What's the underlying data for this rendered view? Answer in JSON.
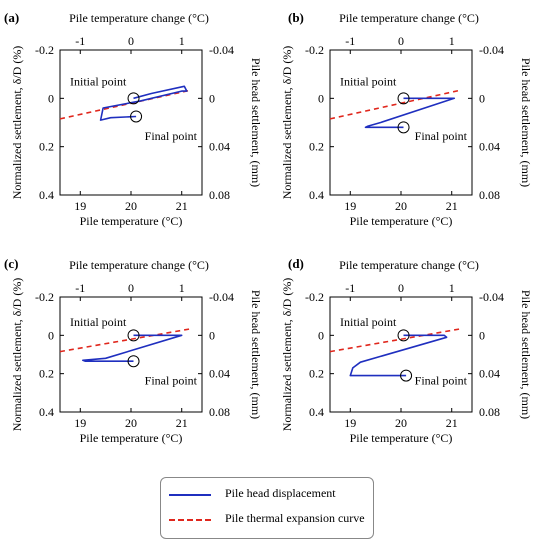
{
  "colors": {
    "displacement": "#1f2fbf",
    "thermal": "#e0271d",
    "axis": "#000000"
  },
  "legend": {
    "displacement_label": "Pile head displacement",
    "thermal_label": "Pile thermal expansion curve"
  },
  "chart_data": [
    {
      "type": "line",
      "panel_label": "(a)",
      "xlabel": "Pile temperature (°C)",
      "x2label": "Pile temperature change (°C)",
      "ylabel": "Normalized settlement, δ/D (%)",
      "y2label": "Pile head settlement, (mm)",
      "xlim": [
        18.6,
        21.4
      ],
      "ylim": [
        0.4,
        -0.2
      ],
      "x_ticks": [
        19,
        20,
        21
      ],
      "x2_ticks": [
        -1,
        0,
        1
      ],
      "y_ticks": [
        -0.2,
        0,
        0.2,
        0.4
      ],
      "y_tick_labels": [
        "-0.2",
        "0",
        "0.2",
        "0.4"
      ],
      "y2_ticks": [
        -0.04,
        0,
        0.04,
        0.08
      ],
      "y2_tick_labels": [
        "-0.04",
        "0",
        "0.04",
        "0.08"
      ],
      "annotations": {
        "initial": "Initial point",
        "final": "Final point"
      },
      "initial_point": {
        "x": 20.05,
        "y": 0.0
      },
      "final_point": {
        "x": 20.1,
        "y": 0.075
      },
      "series": [
        {
          "name": "Pile head displacement",
          "x": [
            20.05,
            20.4,
            21.05,
            21.1,
            21.0,
            20.2,
            19.45,
            19.4,
            19.6,
            20.1
          ],
          "y": [
            0.0,
            -0.02,
            -0.05,
            -0.03,
            -0.03,
            0.01,
            0.04,
            0.09,
            0.08,
            0.075
          ]
        },
        {
          "name": "Pile thermal expansion curve",
          "x": [
            18.6,
            21.2
          ],
          "y": [
            0.085,
            -0.035
          ]
        }
      ]
    },
    {
      "type": "line",
      "panel_label": "(b)",
      "xlabel": "Pile temperature (°C)",
      "x2label": "Pile temperature change (°C)",
      "ylabel": "Normalized settlement, δ/D (%)",
      "y2label": "Pile head settlement, (mm)",
      "xlim": [
        18.6,
        21.4
      ],
      "ylim": [
        0.4,
        -0.2
      ],
      "x_ticks": [
        19,
        20,
        21
      ],
      "x2_ticks": [
        -1,
        0,
        1
      ],
      "y_ticks": [
        -0.2,
        0,
        0.2,
        0.4
      ],
      "y_tick_labels": [
        "-0.2",
        "0",
        "0.2",
        "0.4"
      ],
      "y2_ticks": [
        -0.04,
        0,
        0.04,
        0.08
      ],
      "y2_tick_labels": [
        "-0.04",
        "0",
        "0.04",
        "0.08"
      ],
      "annotations": {
        "initial": "Initial point",
        "final": "Final point"
      },
      "initial_point": {
        "x": 20.05,
        "y": 0.0
      },
      "final_point": {
        "x": 20.05,
        "y": 0.12
      },
      "series": [
        {
          "name": "Pile head displacement",
          "x": [
            20.05,
            21.05,
            19.6,
            19.35,
            19.3,
            20.05
          ],
          "y": [
            0.0,
            0.0,
            0.1,
            0.115,
            0.12,
            0.12
          ]
        },
        {
          "name": "Pile thermal expansion curve",
          "x": [
            18.6,
            21.2
          ],
          "y": [
            0.085,
            -0.035
          ]
        }
      ]
    },
    {
      "type": "line",
      "panel_label": "(c)",
      "xlabel": "Pile temperature (°C)",
      "x2label": "Pile temperature change (°C)",
      "ylabel": "Normalized settlement, δ/D (%)",
      "y2label": "Pile head settlement, (mm)",
      "xlim": [
        18.6,
        21.4
      ],
      "ylim": [
        0.4,
        -0.2
      ],
      "x_ticks": [
        19,
        20,
        21
      ],
      "x2_ticks": [
        -1,
        0,
        1
      ],
      "y_ticks": [
        -0.2,
        0,
        0.2,
        0.4
      ],
      "y_tick_labels": [
        "-0.2",
        "0",
        "0.2",
        "0.4"
      ],
      "y2_ticks": [
        -0.04,
        0,
        0.04,
        0.08
      ],
      "y2_tick_labels": [
        "-0.04",
        "0",
        "0.04",
        "0.08"
      ],
      "annotations": {
        "initial": "Initial point",
        "final": "Final point"
      },
      "initial_point": {
        "x": 20.05,
        "y": 0.0
      },
      "final_point": {
        "x": 20.05,
        "y": 0.135
      },
      "series": [
        {
          "name": "Pile head displacement",
          "x": [
            20.05,
            21.0,
            19.5,
            19.05,
            19.1,
            20.05
          ],
          "y": [
            0.0,
            0.0,
            0.12,
            0.13,
            0.135,
            0.135
          ]
        },
        {
          "name": "Pile thermal expansion curve",
          "x": [
            18.6,
            21.2
          ],
          "y": [
            0.085,
            -0.035
          ]
        }
      ]
    },
    {
      "type": "line",
      "panel_label": "(d)",
      "xlabel": "Pile temperature (°C)",
      "x2label": "Pile temperature change (°C)",
      "ylabel": "Normalized settlement, δ/D (%)",
      "y2label": "Pile head settlement, (mm)",
      "xlim": [
        18.6,
        21.4
      ],
      "ylim": [
        0.4,
        -0.2
      ],
      "x_ticks": [
        19,
        20,
        21
      ],
      "x2_ticks": [
        -1,
        0,
        1
      ],
      "y_ticks": [
        -0.2,
        0,
        0.2,
        0.4
      ],
      "y_tick_labels": [
        "-0.2",
        "0",
        "0.2",
        "0.4"
      ],
      "y2_ticks": [
        -0.04,
        0,
        0.04,
        0.08
      ],
      "y2_tick_labels": [
        "-0.04",
        "0",
        "0.04",
        "0.08"
      ],
      "annotations": {
        "initial": "Initial point",
        "final": "Final point"
      },
      "initial_point": {
        "x": 20.05,
        "y": 0.0
      },
      "final_point": {
        "x": 20.1,
        "y": 0.21
      },
      "series": [
        {
          "name": "Pile head displacement",
          "x": [
            20.05,
            20.85,
            20.9,
            19.2,
            19.05,
            19.0,
            19.3,
            20.1
          ],
          "y": [
            0.0,
            0.0,
            0.01,
            0.14,
            0.17,
            0.21,
            0.21,
            0.21
          ]
        },
        {
          "name": "Pile thermal expansion curve",
          "x": [
            18.6,
            21.2
          ],
          "y": [
            0.085,
            -0.035
          ]
        }
      ]
    }
  ]
}
